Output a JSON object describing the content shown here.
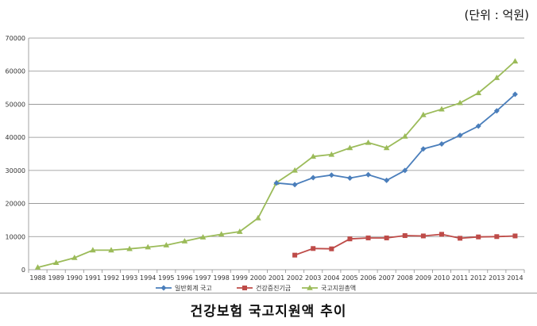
{
  "unit_note": "(단위 : 억원)",
  "caption": "건강보험 국고지원액 추이",
  "chart_data": {
    "type": "line",
    "title": "",
    "xlabel": "",
    "ylabel": "",
    "ylim": [
      0,
      70000
    ],
    "yticks": [
      0,
      10000,
      20000,
      30000,
      40000,
      50000,
      60000,
      70000
    ],
    "categories": [
      "1988",
      "1989",
      "1990",
      "1991",
      "1992",
      "1993",
      "1994",
      "1995",
      "1996",
      "1997",
      "1998",
      "1999",
      "2000",
      "2001",
      "2002",
      "2003",
      "2004",
      "2005",
      "2006",
      "2007",
      "2008",
      "2009",
      "2010",
      "2011",
      "2012",
      "2013",
      "2014"
    ],
    "grid": "horizontal",
    "legend_position": "bottom",
    "series": [
      {
        "name": "일반회계 국고",
        "color": "#4a7ebb",
        "marker": "diamond",
        "values": [
          null,
          null,
          null,
          null,
          null,
          null,
          null,
          null,
          null,
          null,
          null,
          null,
          null,
          26200,
          25700,
          27800,
          28600,
          27700,
          28700,
          27000,
          30000,
          36500,
          38000,
          40600,
          43400,
          48000,
          53000
        ]
      },
      {
        "name": "건강증진기금",
        "color": "#be4b48",
        "marker": "square",
        "values": [
          null,
          null,
          null,
          null,
          null,
          null,
          null,
          null,
          null,
          null,
          null,
          null,
          null,
          null,
          4400,
          6400,
          6300,
          9300,
          9600,
          9600,
          10300,
          10200,
          10700,
          9500,
          9900,
          10000,
          10200
        ]
      },
      {
        "name": "국고지원총액",
        "color": "#9bbb59",
        "marker": "triangle",
        "values": [
          700,
          2100,
          3600,
          5900,
          5900,
          6300,
          6800,
          7400,
          8600,
          9800,
          10700,
          11500,
          15600,
          26300,
          30000,
          34200,
          34800,
          36800,
          38400,
          36800,
          40300,
          46800,
          48500,
          50400,
          53400,
          58000,
          63000
        ]
      }
    ]
  }
}
